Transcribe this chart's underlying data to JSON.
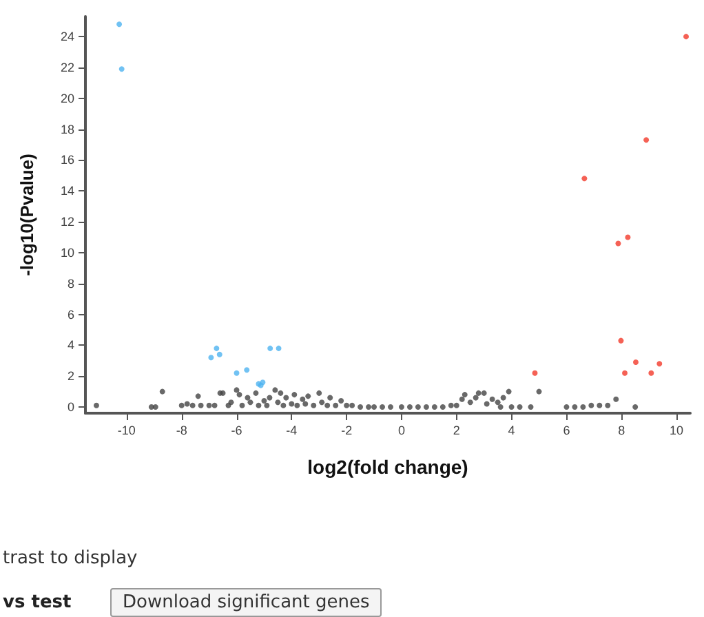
{
  "chart_data": {
    "type": "scatter",
    "xlabel": "log2(fold change)",
    "ylabel": "-log10(Pvalue)",
    "xlim": [
      -11.5,
      10.5
    ],
    "xticks": [
      -10,
      -8,
      -6,
      -4,
      -2,
      0,
      2,
      4,
      6,
      8,
      10
    ],
    "ylim": [
      -0.4,
      25.3
    ],
    "yticks": [
      0,
      2,
      4,
      6,
      8,
      10,
      12,
      14,
      16,
      18,
      20,
      22,
      24
    ],
    "grid": false,
    "marker": "circle",
    "series": [
      {
        "color": "#444444",
        "x": [
          -11.1,
          -9.1,
          -8.95,
          -8.7,
          -8.0,
          -7.8,
          -7.6,
          -7.4,
          -7.3,
          -7.0,
          -6.8,
          -6.6,
          -6.5,
          -6.3,
          -6.2,
          -6.0,
          -5.9,
          -5.8,
          -5.6,
          -5.5,
          -5.3,
          -5.2,
          -5.0,
          -4.9,
          -4.8,
          -4.6,
          -4.5,
          -4.4,
          -4.3,
          -4.2,
          -4.0,
          -3.9,
          -3.8,
          -3.6,
          -3.5,
          -3.4,
          -3.2,
          -3.0,
          -2.9,
          -2.7,
          -2.6,
          -2.4,
          -2.2,
          -2.0,
          -1.8,
          -1.5,
          -1.2,
          -1.0,
          -0.7,
          -0.4,
          0,
          0.3,
          0.6,
          0.9,
          1.2,
          1.5,
          1.8,
          2.0,
          2.2,
          2.3,
          2.5,
          2.7,
          2.8,
          3.0,
          3.1,
          3.3,
          3.5,
          3.7,
          3.9,
          3.6,
          4.0,
          4.3,
          4.7,
          5.0,
          6.0,
          6.3,
          6.6,
          6.9,
          7.2,
          7.5,
          7.8,
          8.5
        ],
        "values": [
          0.1,
          0,
          0,
          1.0,
          0.1,
          0.2,
          0.1,
          0.7,
          0.1,
          0.1,
          0.1,
          0.9,
          0.9,
          0.1,
          0.3,
          1.1,
          0.8,
          0.1,
          0.6,
          0.3,
          0.9,
          0.1,
          0.4,
          0.1,
          0.6,
          1.1,
          0.3,
          0.9,
          0.1,
          0.6,
          0.2,
          0.8,
          0.1,
          0.5,
          0.2,
          0.7,
          0.1,
          0.9,
          0.3,
          0.1,
          0.6,
          0.1,
          0.4,
          0.1,
          0.1,
          0,
          0,
          0,
          0,
          0,
          0,
          0,
          0,
          0,
          0,
          0,
          0.1,
          0.1,
          0.5,
          0.8,
          0.3,
          0.6,
          0.9,
          0.9,
          0.2,
          0.5,
          0.3,
          0.6,
          1.0,
          0,
          0,
          0,
          0,
          1.0,
          0,
          0,
          0,
          0.1,
          0.1,
          0.1,
          0.5,
          0
        ]
      },
      {
        "color": "#4db3f0",
        "x": [
          -10.27,
          -10.18,
          -6.73,
          -6.62,
          -6.93,
          -6.0,
          -5.63,
          -5.2,
          -5.05,
          -5.12,
          -4.78,
          -4.47
        ],
        "values": [
          24.8,
          21.9,
          3.8,
          3.4,
          3.2,
          2.2,
          2.4,
          1.5,
          1.6,
          1.4,
          3.8,
          3.8
        ]
      },
      {
        "color": "#f23a2a",
        "x": [
          10.35,
          8.9,
          6.65,
          7.88,
          8.23,
          7.98,
          8.52,
          9.38,
          8.12,
          9.08,
          4.85
        ],
        "values": [
          24.0,
          17.3,
          14.8,
          10.6,
          11.0,
          4.3,
          2.9,
          2.8,
          2.2,
          2.2,
          2.2
        ]
      }
    ],
    "annotations": [
      "trast to display",
      "vs test",
      "Download significant genes"
    ]
  }
}
